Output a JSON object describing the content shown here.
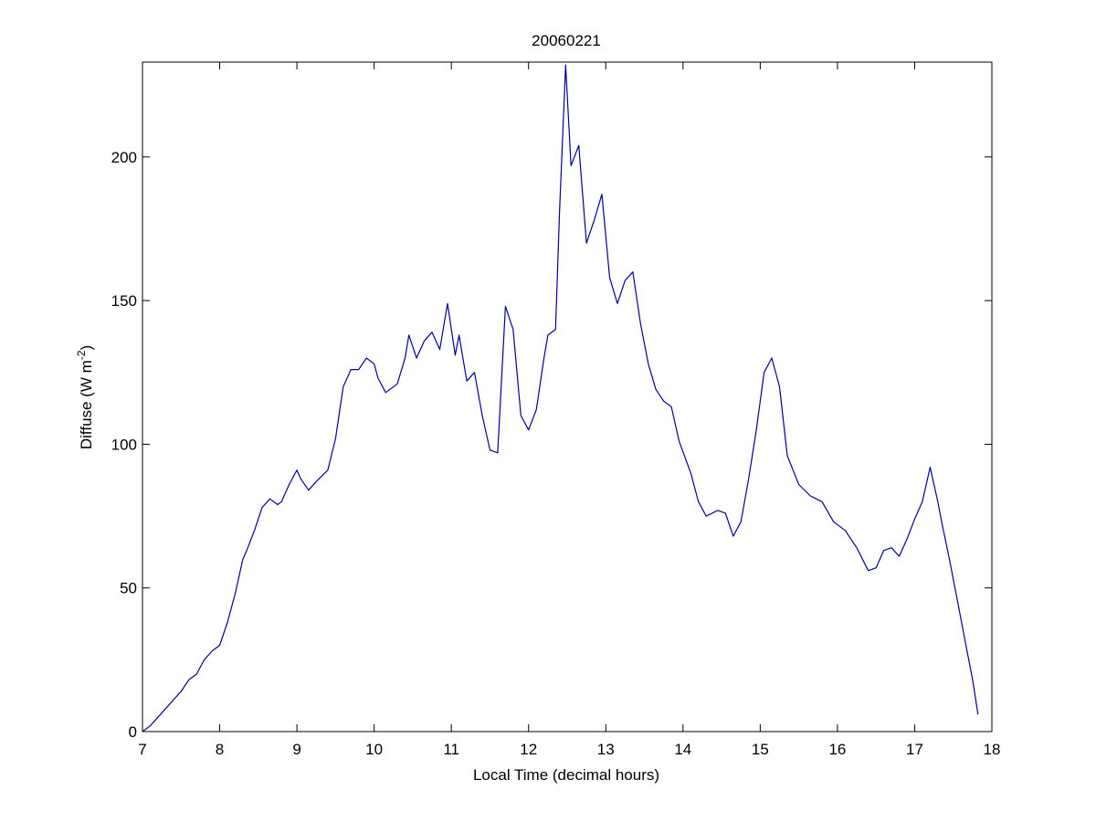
{
  "figure": {
    "title": "20060221"
  },
  "chart_data": {
    "type": "line",
    "title": "20060221",
    "xlabel": "Local Time (decimal hours)",
    "ylabel": "Diffuse (W m^-2)",
    "ylabel_parts": {
      "main": "Diffuse (W m",
      "sup": "-2",
      "end": ")"
    },
    "xlim": [
      7,
      18
    ],
    "ylim": [
      0,
      233
    ],
    "xticks": [
      7,
      8,
      9,
      10,
      11,
      12,
      13,
      14,
      15,
      16,
      17,
      18
    ],
    "yticks": [
      0,
      50,
      100,
      150,
      200
    ],
    "xtick_labels": [
      "7",
      "8",
      "9",
      "10",
      "11",
      "12",
      "13",
      "14",
      "15",
      "16",
      "17",
      "18"
    ],
    "ytick_labels": [
      "0",
      "50",
      "100",
      "150",
      "200"
    ],
    "grid": false,
    "box": true,
    "line_color": "#0000a0",
    "series": [
      {
        "x": [
          7.0,
          7.1,
          7.2,
          7.3,
          7.4,
          7.5,
          7.6,
          7.7,
          7.8,
          7.9,
          8.0,
          8.1,
          8.2,
          8.3,
          8.35,
          8.45,
          8.55,
          8.65,
          8.75,
          8.8,
          8.9,
          9.0,
          9.05,
          9.15,
          9.25,
          9.4,
          9.5,
          9.6,
          9.7,
          9.8,
          9.9,
          10.0,
          10.05,
          10.15,
          10.3,
          10.4,
          10.45,
          10.55,
          10.65,
          10.75,
          10.85,
          10.95,
          11.05,
          11.1,
          11.2,
          11.3,
          11.4,
          11.5,
          11.6,
          11.7,
          11.8,
          11.9,
          12.0,
          12.1,
          12.2,
          12.25,
          12.35,
          12.4,
          12.48,
          12.55,
          12.65,
          12.75,
          12.85,
          12.95,
          13.05,
          13.15,
          13.25,
          13.35,
          13.45,
          13.55,
          13.65,
          13.75,
          13.85,
          13.95,
          14.1,
          14.2,
          14.3,
          14.45,
          14.55,
          14.65,
          14.75,
          14.85,
          14.95,
          15.05,
          15.15,
          15.25,
          15.35,
          15.5,
          15.65,
          15.8,
          15.95,
          16.1,
          16.25,
          16.4,
          16.5,
          16.6,
          16.7,
          16.8,
          16.9,
          17.0,
          17.1,
          17.15,
          17.2,
          17.3,
          17.35,
          17.45,
          17.55,
          17.65,
          17.75,
          17.82
        ],
        "y": [
          0,
          2,
          5,
          8,
          11,
          14,
          18,
          20,
          25,
          28,
          30,
          38,
          48,
          60,
          63,
          70,
          78,
          81,
          79,
          80,
          86,
          91,
          88,
          84,
          87,
          91,
          102,
          120,
          126,
          126,
          130,
          128,
          123,
          118,
          121,
          130,
          138,
          130,
          136,
          139,
          133,
          149,
          131,
          138,
          122,
          125,
          110,
          98,
          97,
          148,
          140,
          110,
          105,
          112,
          130,
          138,
          140,
          180,
          232,
          197,
          204,
          170,
          178,
          187,
          158,
          149,
          157,
          160,
          142,
          128,
          119,
          115,
          113,
          101,
          90,
          80,
          75,
          77,
          76,
          68,
          73,
          88,
          105,
          125,
          130,
          120,
          96,
          86,
          82,
          80,
          73,
          70,
          64,
          56,
          57,
          63,
          64,
          61,
          67,
          74,
          80,
          86,
          92,
          80,
          73,
          60,
          46,
          32,
          18,
          6
        ]
      }
    ]
  }
}
